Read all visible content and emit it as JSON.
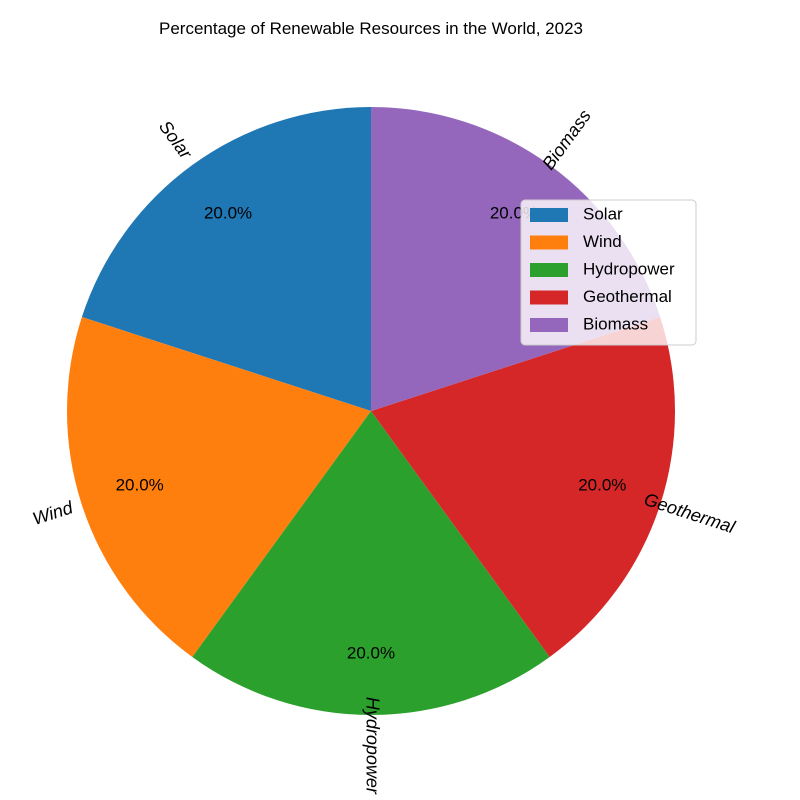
{
  "chart_data": {
    "type": "pie",
    "title": "Percentage of Renewable Resources in the World, 2023",
    "slices": [
      {
        "label": "Solar",
        "value": 20.0,
        "pct_label": "20.0%",
        "color": "#1f77b4"
      },
      {
        "label": "Wind",
        "value": 20.0,
        "pct_label": "20.0%",
        "color": "#ff7f0e"
      },
      {
        "label": "Hydropower",
        "value": 20.0,
        "pct_label": "20.0%",
        "color": "#2ca02c"
      },
      {
        "label": "Geothermal",
        "value": 20.0,
        "pct_label": "20.0%",
        "color": "#d62728"
      },
      {
        "label": "Biomass",
        "value": 20.0,
        "pct_label": "20.0%",
        "color": "#9467bd"
      }
    ],
    "start_angle_deg": 90,
    "direction": "counterclockwise",
    "legend": {
      "position": "right",
      "entries": [
        "Solar",
        "Wind",
        "Hydropower",
        "Geothermal",
        "Biomass"
      ]
    }
  }
}
